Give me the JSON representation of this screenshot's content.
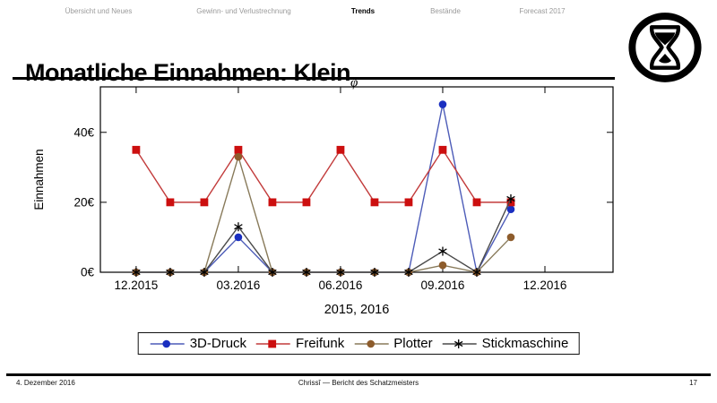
{
  "nav": {
    "items": [
      {
        "label": "Übersicht und Neues",
        "active": false
      },
      {
        "label": "Gewinn- und Verlustrechnung",
        "active": false
      },
      {
        "label": "Trends",
        "active": true
      },
      {
        "label": "Bestände",
        "active": false
      },
      {
        "label": "Forecast 2017",
        "active": false
      }
    ]
  },
  "header": {
    "title": "Monatliche Einnahmen: Klein",
    "title_subscript": "φ"
  },
  "chart_data": {
    "type": "line",
    "title": "",
    "xlabel": "2015, 2016",
    "ylabel": "Einnahmen",
    "months": [
      "12.2015",
      "01.2016",
      "02.2016",
      "03.2016",
      "04.2016",
      "05.2016",
      "06.2016",
      "07.2016",
      "08.2016",
      "09.2016",
      "10.2016",
      "11.2016"
    ],
    "x_ticks": [
      {
        "month_index": 0,
        "label": "12.2015"
      },
      {
        "month_index": 3,
        "label": "03.2016"
      },
      {
        "month_index": 6,
        "label": "06.2016"
      },
      {
        "month_index": 9,
        "label": "09.2016"
      },
      {
        "month_index": 12,
        "label": "12.2016"
      }
    ],
    "y_ticks": [
      {
        "value": 0,
        "label": "0€"
      },
      {
        "value": 20,
        "label": "20€"
      },
      {
        "value": 40,
        "label": "40€"
      }
    ],
    "xlim": [
      -1.05,
      14.0
    ],
    "ylim": [
      0,
      53
    ],
    "grid": false,
    "legend_position": "bottom-outside",
    "series": [
      {
        "name": "3D-Druck",
        "marker": "circle",
        "marker_color": "#1a2fc0",
        "line_color": "#4d5cb8",
        "values": [
          0,
          0,
          0,
          10,
          0,
          0,
          0,
          0,
          0,
          48,
          0,
          18
        ]
      },
      {
        "name": "Freifunk",
        "marker": "square",
        "marker_color": "#cc0f0f",
        "line_color": "#c23b3b",
        "values": [
          35,
          20,
          20,
          35,
          20,
          20,
          35,
          20,
          20,
          35,
          20,
          20
        ]
      },
      {
        "name": "Plotter",
        "marker": "circle",
        "marker_color": "#8d5c2c",
        "line_color": "#887a5a",
        "values": [
          0,
          0,
          0,
          33,
          0,
          0,
          0,
          0,
          0,
          2,
          0,
          10
        ]
      },
      {
        "name": "Stickmaschine",
        "marker": "star",
        "marker_color": "#000000",
        "line_color": "#4a4a4a",
        "values": [
          0,
          0,
          0,
          13,
          0,
          0,
          0,
          0,
          0,
          6,
          0,
          21
        ]
      }
    ]
  },
  "footer": {
    "date": "4. Dezember 2016",
    "center": "Chrissî — Bericht des Schatzmeisters",
    "page": "17"
  }
}
